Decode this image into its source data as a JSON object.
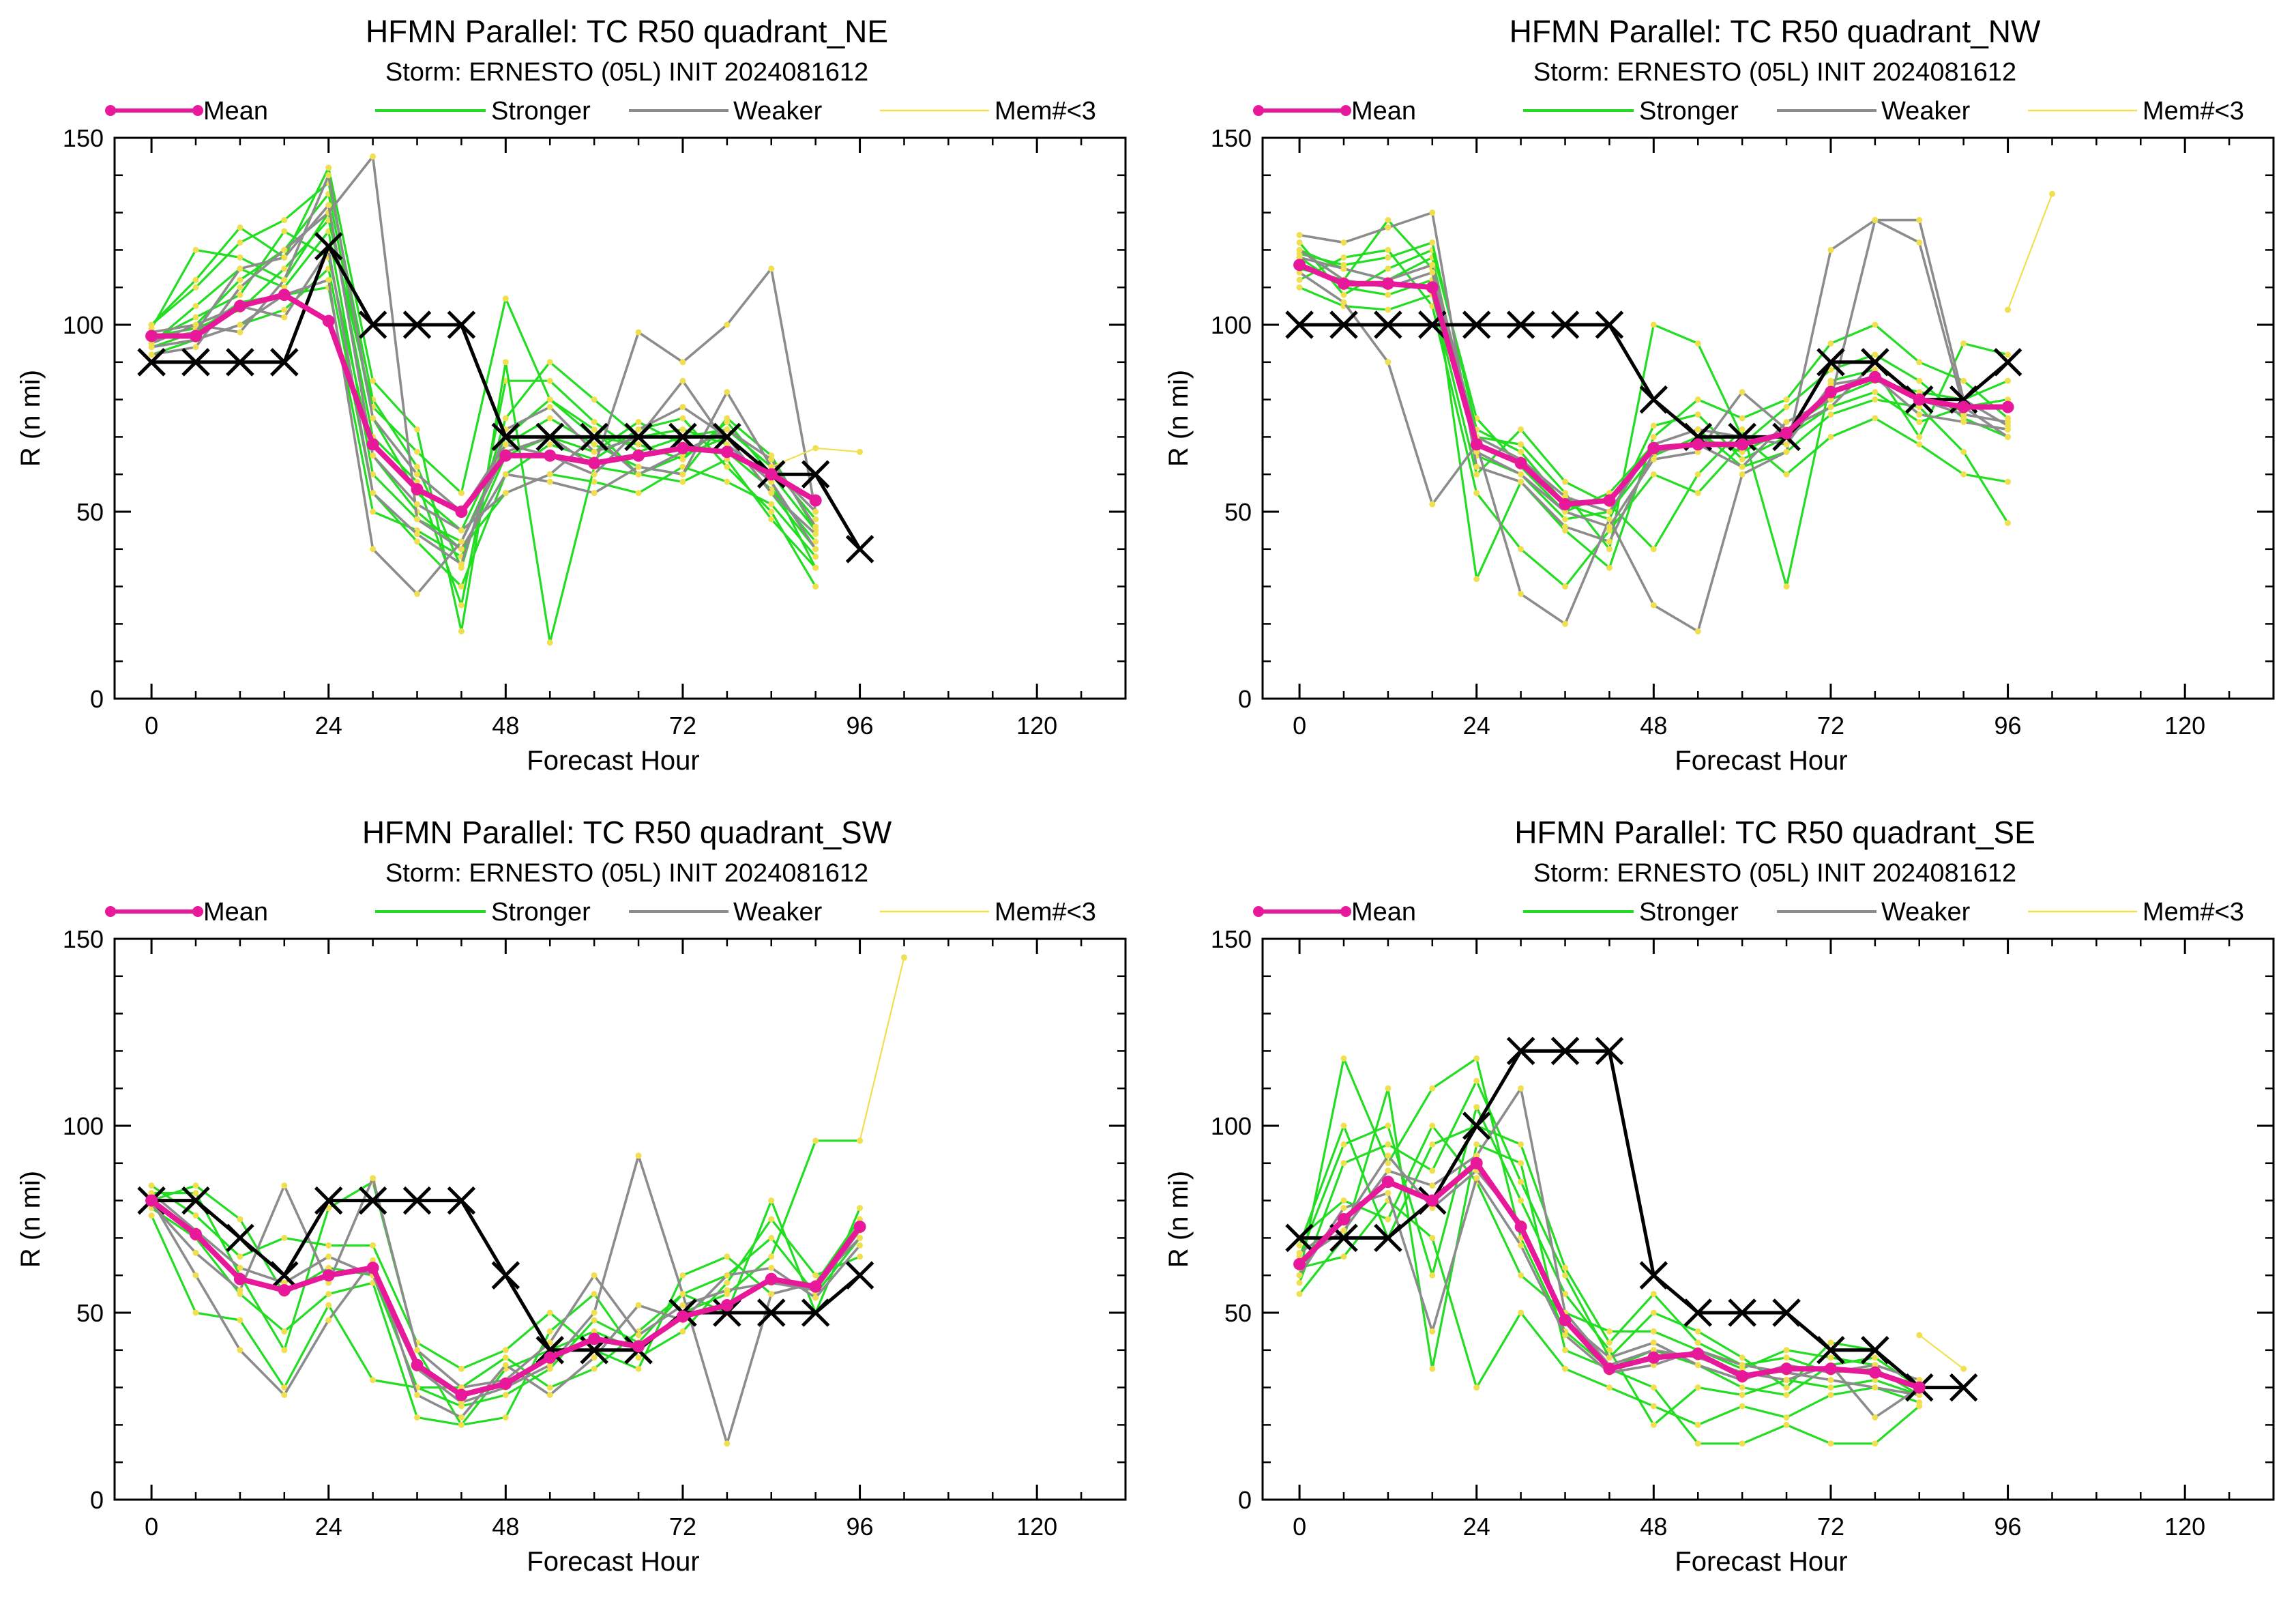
{
  "colors": {
    "mean": "#e8189a",
    "stronger": "#22dd22",
    "weaker": "#8c8c8c",
    "few_members": "#f0e050",
    "observed": "#000000"
  },
  "legend": {
    "mean": "Mean",
    "stronger": "Stronger",
    "weaker": "Weaker",
    "few_members": "Mem#<3"
  },
  "chart_data": [
    {
      "type": "line",
      "title": "HFMN Parallel: TC  R50 quadrant_NE",
      "subtitle": "Storm: ERNESTO (05L) INIT 2024081612",
      "xlabel": "Forecast Hour",
      "ylabel": "R (n mi)",
      "xlim": [
        -5,
        132
      ],
      "ylim": [
        0,
        150
      ],
      "xticks": [
        0,
        24,
        48,
        72,
        96,
        120
      ],
      "yticks": [
        0,
        50,
        100,
        150
      ],
      "grid": false,
      "legend_position": "top",
      "x": [
        0,
        6,
        12,
        18,
        24,
        30,
        36,
        42,
        48,
        54,
        60,
        66,
        72,
        78,
        84,
        90,
        96
      ],
      "series": [
        {
          "name": "Mean",
          "values": [
            97,
            97,
            105,
            108,
            101,
            68,
            56,
            50,
            65,
            65,
            63,
            65,
            67,
            66,
            60,
            53,
            null
          ]
        },
        {
          "values": [
            90,
            90,
            90,
            90,
            121,
            100,
            100,
            100,
            70,
            70,
            70,
            70,
            70,
            70,
            60,
            60,
            40
          ]
        }
      ],
      "members": {
        "stronger": [
          [
            98,
            100,
            112,
            120,
            135,
            75,
            55,
            45,
            70,
            80,
            72,
            60,
            65,
            70,
            55,
            40
          ],
          [
            95,
            105,
            115,
            110,
            125,
            60,
            48,
            42,
            68,
            75,
            68,
            62,
            60,
            75,
            65,
            45
          ],
          [
            100,
            110,
            122,
            128,
            138,
            80,
            62,
            35,
            75,
            90,
            80,
            70,
            72,
            68,
            58,
            35
          ],
          [
            92,
            96,
            100,
            104,
            115,
            55,
            42,
            30,
            60,
            68,
            64,
            72,
            75,
            62,
            50,
            30
          ],
          [
            99,
            120,
            118,
            112,
            130,
            70,
            58,
            25,
            85,
            85,
            74,
            66,
            70,
            72,
            62,
            48
          ],
          [
            96,
            102,
            108,
            125,
            118,
            65,
            50,
            40,
            55,
            60,
            58,
            55,
            62,
            58,
            52,
            38
          ],
          [
            97,
            99,
            104,
            115,
            128,
            78,
            66,
            55,
            107,
            80,
            70,
            68,
            64,
            74,
            60,
            45
          ],
          [
            94,
            98,
            106,
            108,
            110,
            50,
            45,
            38,
            65,
            70,
            66,
            74,
            68,
            66,
            56,
            42
          ],
          [
            100,
            112,
            126,
            118,
            142,
            85,
            72,
            18,
            90,
            15,
            62,
            60,
            58,
            64,
            48,
            35
          ]
        ],
        "weaker": [
          [
            95,
            100,
            98,
            112,
            140,
            75,
            60,
            50,
            68,
            65,
            60,
            72,
            78,
            70,
            55,
            44
          ],
          [
            92,
            94,
            110,
            120,
            130,
            145,
            48,
            40,
            60,
            58,
            55,
            62,
            60,
            82,
            62,
            50
          ],
          [
            98,
            100,
            105,
            102,
            120,
            55,
            44,
            36,
            72,
            78,
            66,
            70,
            85,
            68,
            58,
            40
          ],
          [
            96,
            98,
            115,
            118,
            132,
            65,
            52,
            45,
            55,
            60,
            70,
            60,
            66,
            72,
            64,
            46
          ],
          [
            94,
            96,
            100,
            108,
            112,
            40,
            28,
            42,
            66,
            70,
            62,
            98,
            90,
            100,
            115,
            50
          ]
        ],
        "few_members": [
          {
            "x": [
              84,
              90,
              96
            ],
            "values": [
              62,
              67,
              66
            ]
          }
        ]
      }
    },
    {
      "type": "line",
      "title": "HFMN Parallel: TC  R50 quadrant_NW",
      "subtitle": "Storm: ERNESTO (05L) INIT 2024081612",
      "xlabel": "Forecast Hour",
      "ylabel": "R (n mi)",
      "xlim": [
        -5,
        132
      ],
      "ylim": [
        0,
        150
      ],
      "xticks": [
        0,
        24,
        48,
        72,
        96,
        120
      ],
      "yticks": [
        0,
        50,
        100,
        150
      ],
      "grid": false,
      "legend_position": "top",
      "x": [
        0,
        6,
        12,
        18,
        24,
        30,
        36,
        42,
        48,
        54,
        60,
        66,
        72,
        78,
        84,
        90,
        96
      ],
      "series": [
        {
          "name": "Mean",
          "values": [
            116,
            111,
            111,
            110,
            68,
            63,
            52,
            53,
            67,
            68,
            68,
            71,
            82,
            86,
            80,
            78,
            78
          ]
        },
        {
          "values": [
            100,
            100,
            100,
            100,
            100,
            100,
            100,
            100,
            80,
            70,
            70,
            70,
            90,
            90,
            80,
            80,
            90
          ]
        }
      ],
      "members": {
        "stronger": [
          [
            120,
            115,
            112,
            118,
            65,
            60,
            48,
            50,
            65,
            70,
            66,
            72,
            80,
            85,
            82,
            80,
            85
          ],
          [
            118,
            110,
            108,
            112,
            70,
            68,
            55,
            40,
            100,
            95,
            70,
            60,
            70,
            75,
            68,
            60,
            58
          ],
          [
            112,
            118,
            120,
            105,
            55,
            40,
            30,
            45,
            60,
            55,
            68,
            78,
            88,
            92,
            85,
            75,
            70
          ],
          [
            122,
            108,
            115,
            120,
            75,
            62,
            50,
            55,
            68,
            72,
            62,
            66,
            76,
            80,
            78,
            66,
            47
          ],
          [
            115,
            112,
            128,
            115,
            32,
            58,
            45,
            35,
            70,
            80,
            75,
            80,
            95,
            100,
            90,
            85,
            75
          ],
          [
            110,
            105,
            104,
            108,
            60,
            72,
            58,
            52,
            40,
            60,
            72,
            30,
            85,
            88,
            70,
            95,
            92
          ],
          [
            119,
            116,
            118,
            122,
            72,
            66,
            52,
            48,
            73,
            76,
            64,
            70,
            78,
            82,
            74,
            78,
            80
          ]
        ],
        "weaker": [
          [
            124,
            122,
            126,
            130,
            62,
            58,
            46,
            42,
            66,
            68,
            62,
            74,
            80,
            128,
            128,
            80,
            73
          ],
          [
            114,
            106,
            90,
            52,
            68,
            28,
            20,
            48,
            25,
            18,
            60,
            66,
            120,
            128,
            122,
            78,
            70
          ],
          [
            118,
            115,
            112,
            116,
            70,
            64,
            54,
            50,
            68,
            72,
            70,
            68,
            84,
            86,
            76,
            74,
            72
          ],
          [
            120,
            112,
            110,
            114,
            66,
            60,
            50,
            46,
            64,
            66,
            82,
            72,
            78,
            90,
            80,
            76,
            74
          ]
        ],
        "few_members": [
          {
            "x": [
              96,
              102
            ],
            "values": [
              104,
              135
            ]
          }
        ]
      }
    },
    {
      "type": "line",
      "title": "HFMN Parallel: TC  R50 quadrant_SW",
      "subtitle": "Storm: ERNESTO (05L) INIT 2024081612",
      "xlabel": "Forecast Hour",
      "ylabel": "R (n mi)",
      "xlim": [
        -5,
        132
      ],
      "ylim": [
        0,
        150
      ],
      "xticks": [
        0,
        24,
        48,
        72,
        96,
        120
      ],
      "yticks": [
        0,
        50,
        100,
        150
      ],
      "grid": false,
      "legend_position": "top",
      "x": [
        0,
        6,
        12,
        18,
        24,
        30,
        36,
        42,
        48,
        54,
        60,
        66,
        72,
        78,
        84,
        90,
        96
      ],
      "series": [
        {
          "name": "Mean",
          "values": [
            80,
            71,
            59,
            56,
            60,
            62,
            36,
            28,
            31,
            38,
            43,
            41,
            49,
            52,
            59,
            57,
            73
          ]
        },
        {
          "values": [
            80,
            80,
            70,
            60,
            80,
            80,
            80,
            80,
            60,
            40,
            40,
            40,
            50,
            50,
            50,
            50,
            60
          ]
        }
      ],
      "members": {
        "stronger": [
          [
            82,
            82,
            60,
            40,
            78,
            85,
            40,
            20,
            35,
            40,
            45,
            40,
            50,
            55,
            65,
            96,
            96
          ],
          [
            80,
            84,
            75,
            55,
            62,
            60,
            30,
            25,
            28,
            35,
            48,
            42,
            55,
            60,
            70,
            55,
            70
          ],
          [
            78,
            70,
            55,
            45,
            55,
            58,
            22,
            20,
            22,
            45,
            55,
            38,
            45,
            58,
            75,
            60,
            65
          ],
          [
            84,
            76,
            65,
            70,
            68,
            68,
            42,
            35,
            40,
            50,
            40,
            35,
            60,
            65,
            55,
            58,
            75
          ],
          [
            76,
            50,
            48,
            30,
            52,
            32,
            30,
            30,
            38,
            30,
            35,
            45,
            55,
            50,
            80,
            50,
            78
          ]
        ],
        "weaker": [
          [
            82,
            72,
            62,
            58,
            65,
            60,
            35,
            26,
            30,
            36,
            50,
            92,
            55,
            15,
            55,
            58,
            70
          ],
          [
            79,
            66,
            56,
            84,
            58,
            86,
            40,
            30,
            32,
            42,
            60,
            44,
            52,
            56,
            58,
            56,
            72
          ],
          [
            80,
            60,
            40,
            28,
            48,
            64,
            28,
            22,
            36,
            28,
            38,
            52,
            48,
            60,
            62,
            54,
            68
          ]
        ],
        "few_members": [
          {
            "x": [
              96,
              102
            ],
            "values": [
              96,
              145
            ]
          }
        ]
      }
    },
    {
      "type": "line",
      "title": "HFMN Parallel: TC  R50 quadrant_SE",
      "subtitle": "Storm: ERNESTO (05L) INIT 2024081612",
      "xlabel": "Forecast Hour",
      "ylabel": "R (n mi)",
      "xlim": [
        -5,
        132
      ],
      "ylim": [
        0,
        150
      ],
      "xticks": [
        0,
        24,
        48,
        72,
        96,
        120
      ],
      "yticks": [
        0,
        50,
        100,
        150
      ],
      "grid": false,
      "legend_position": "top",
      "x": [
        0,
        6,
        12,
        18,
        24,
        30,
        36,
        42,
        48,
        54,
        60,
        66,
        72,
        78,
        84,
        90,
        96
      ],
      "series": [
        {
          "name": "Mean",
          "values": [
            63,
            75,
            85,
            80,
            90,
            73,
            48,
            35,
            38,
            39,
            33,
            35,
            35,
            34,
            30,
            null,
            null
          ]
        },
        {
          "values": [
            70,
            70,
            70,
            80,
            100,
            120,
            120,
            120,
            60,
            50,
            50,
            50,
            40,
            40,
            30,
            30,
            null
          ]
        }
      ],
      "members": {
        "stronger": [
          [
            60,
            118,
            90,
            110,
            118,
            70,
            45,
            35,
            40,
            36,
            30,
            28,
            36,
            38,
            30
          ],
          [
            65,
            95,
            100,
            60,
            105,
            80,
            55,
            40,
            20,
            30,
            28,
            32,
            30,
            32,
            28
          ],
          [
            55,
            70,
            110,
            35,
            95,
            90,
            40,
            35,
            30,
            15,
            15,
            20,
            15,
            15,
            25
          ],
          [
            70,
            80,
            75,
            100,
            85,
            60,
            50,
            45,
            45,
            40,
            35,
            40,
            38,
            36,
            32
          ],
          [
            58,
            90,
            95,
            88,
            112,
            85,
            60,
            38,
            50,
            45,
            38,
            30,
            42,
            40,
            30
          ],
          [
            62,
            65,
            80,
            70,
            30,
            50,
            35,
            30,
            25,
            20,
            25,
            22,
            28,
            30,
            26
          ],
          [
            68,
            100,
            70,
            95,
            100,
            95,
            62,
            42,
            55,
            42,
            36,
            38,
            34,
            35,
            28
          ]
        ],
        "weaker": [
          [
            64,
            72,
            88,
            84,
            92,
            110,
            50,
            36,
            40,
            38,
            34,
            32,
            36,
            22,
            30
          ],
          [
            60,
            78,
            82,
            45,
            86,
            68,
            44,
            34,
            36,
            40,
            36,
            34,
            32,
            30,
            28
          ],
          [
            66,
            74,
            92,
            78,
            88,
            74,
            48,
            38,
            42,
            36,
            32,
            36,
            34,
            36,
            32
          ]
        ],
        "few_members": [
          {
            "x": [
              84,
              90
            ],
            "values": [
              44,
              35
            ]
          }
        ]
      }
    }
  ]
}
